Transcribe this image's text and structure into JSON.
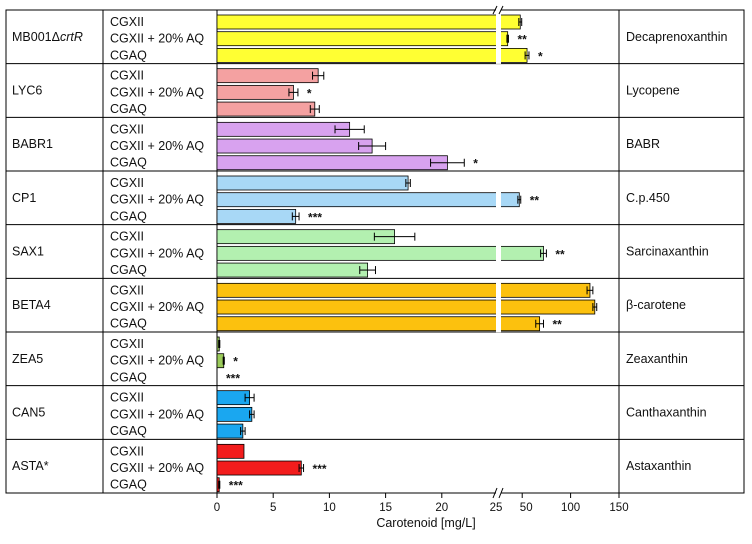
{
  "chart_data": {
    "type": "bar",
    "orientation": "horizontal",
    "xlabel": "Carotenoid [mg/L]",
    "x_axis_broken": true,
    "xlim_segment_1": [
      0,
      25
    ],
    "xlim_segment_2": [
      25,
      150
    ],
    "x_ticks": [
      {
        "value": 0,
        "label": "0"
      },
      {
        "value": 5,
        "label": "5"
      },
      {
        "value": 10,
        "label": "10"
      },
      {
        "value": 15,
        "label": "15"
      },
      {
        "value": 20,
        "label": "20"
      },
      {
        "value": 25,
        "label": "25"
      },
      {
        "value": 50,
        "label": "50"
      },
      {
        "value": 100,
        "label": "100"
      },
      {
        "value": 150,
        "label": "150"
      }
    ],
    "conditions": [
      "CGXII",
      "CGXII + 20% AQ",
      "CGAQ"
    ],
    "groups": [
      {
        "strain": "MB001Δ",
        "strain_italic": "crtR",
        "pigment": "Decaprenoxanthin",
        "color": "#ffff33",
        "bars": [
          {
            "value": 48,
            "err": 1.5,
            "sig": ""
          },
          {
            "value": 35,
            "err": 0.8,
            "sig": "**"
          },
          {
            "value": 55,
            "err": 2,
            "sig": "*"
          }
        ]
      },
      {
        "strain": "LYC6",
        "strain_italic": "",
        "pigment": "Lycopene",
        "color": "#f4a1a1",
        "bars": [
          {
            "value": 9,
            "err": 0.5,
            "sig": ""
          },
          {
            "value": 6.8,
            "err": 0.4,
            "sig": "*"
          },
          {
            "value": 8.7,
            "err": 0.4,
            "sig": ""
          }
        ]
      },
      {
        "strain": "BABR1",
        "strain_italic": "",
        "pigment": "BABR",
        "color": "#d8a2ef",
        "bars": [
          {
            "value": 11.8,
            "err": 1.3,
            "sig": ""
          },
          {
            "value": 13.8,
            "err": 1.2,
            "sig": ""
          },
          {
            "value": 20.5,
            "err": 1.5,
            "sig": "*"
          }
        ]
      },
      {
        "strain": "CP1",
        "strain_italic": "",
        "pigment": "C.p.450",
        "color": "#a8d8f6",
        "bars": [
          {
            "value": 17,
            "err": 0.2,
            "sig": ""
          },
          {
            "value": 47,
            "err": 1.5,
            "sig": "**"
          },
          {
            "value": 7,
            "err": 0.3,
            "sig": "***"
          }
        ]
      },
      {
        "strain": "SAX1",
        "strain_italic": "",
        "pigment": "Sarcinaxanthin",
        "color": "#b3f0b0",
        "bars": [
          {
            "value": 15.8,
            "err": 1.8,
            "sig": ""
          },
          {
            "value": 72,
            "err": 3,
            "sig": "**"
          },
          {
            "value": 13.4,
            "err": 0.7,
            "sig": ""
          }
        ]
      },
      {
        "strain": "BETA4",
        "strain_italic": "",
        "pigment": "β-carotene",
        "color": "#fcc10e",
        "bars": [
          {
            "value": 120,
            "err": 3,
            "sig": ""
          },
          {
            "value": 125,
            "err": 2,
            "sig": ""
          },
          {
            "value": 68,
            "err": 4,
            "sig": "**"
          }
        ]
      },
      {
        "strain": "ZEA5",
        "strain_italic": "",
        "pigment": "Zeaxanthin",
        "color": "#9bcb5a",
        "bars": [
          {
            "value": 0.2,
            "err": 0.05,
            "sig": ""
          },
          {
            "value": 0.6,
            "err": 0.05,
            "sig": "*"
          },
          {
            "value": 0,
            "err": 0,
            "sig": "***"
          }
        ]
      },
      {
        "strain": "CAN5",
        "strain_italic": "",
        "pigment": "Canthaxanthin",
        "color": "#1aa7f0",
        "bars": [
          {
            "value": 2.9,
            "err": 0.4,
            "sig": ""
          },
          {
            "value": 3.1,
            "err": 0.2,
            "sig": ""
          },
          {
            "value": 2.3,
            "err": 0.2,
            "sig": ""
          }
        ]
      },
      {
        "strain": "ASTA*",
        "strain_italic": "",
        "pigment": "Astaxanthin",
        "color": "#f21c1c",
        "bars": [
          {
            "value": 2.4,
            "err": 0,
            "sig": ""
          },
          {
            "value": 7.5,
            "err": 0.2,
            "sig": "***"
          },
          {
            "value": 0.2,
            "err": 0.05,
            "sig": "***"
          }
        ]
      }
    ]
  }
}
